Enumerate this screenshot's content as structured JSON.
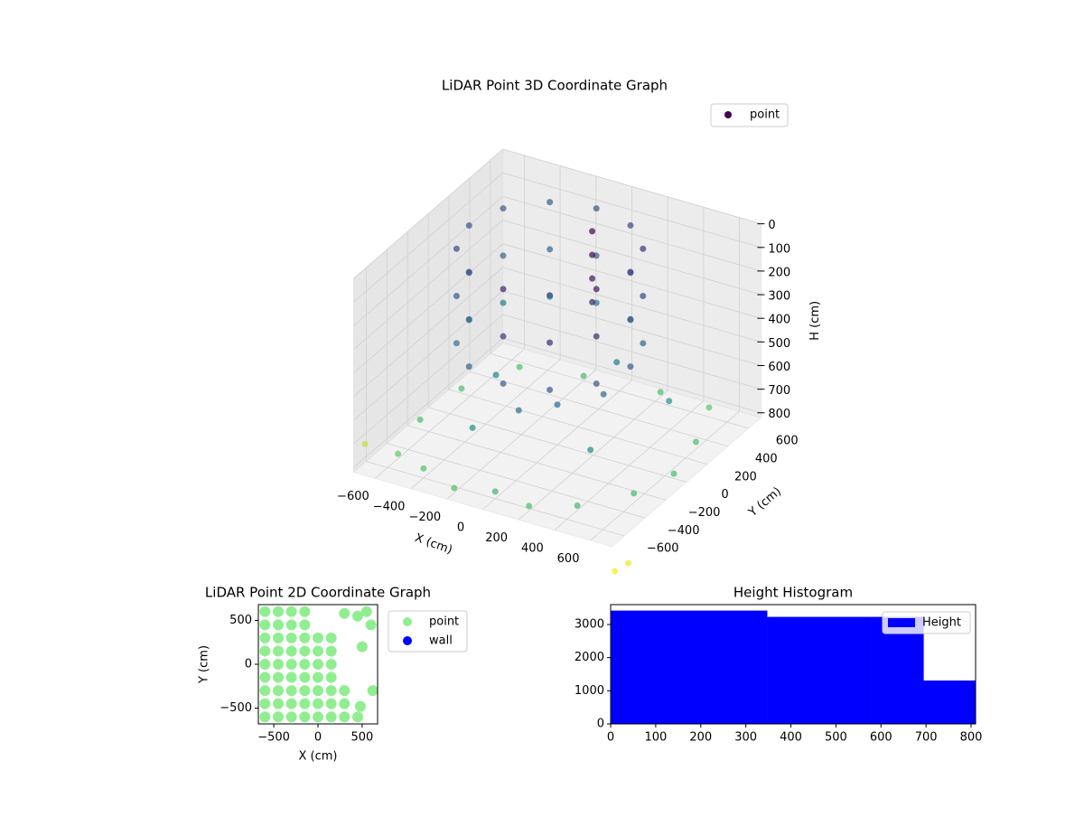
{
  "chart_data": [
    {
      "type": "scatter3d",
      "title": "LiDAR Point 3D Coordinate Graph",
      "xlabel": "X (cm)",
      "ylabel": "Y (cm)",
      "zlabel": "H (cm)",
      "xlim": [
        -720,
        720
      ],
      "ylim": [
        -720,
        720
      ],
      "zlim": [
        820,
        0
      ],
      "xticks": [
        {
          "value": -600,
          "label": "−600"
        },
        {
          "value": -400,
          "label": "−400"
        },
        {
          "value": -200,
          "label": "−200"
        },
        0,
        200,
        400,
        600
      ],
      "yticks": [
        {
          "value": -600,
          "label": "−600"
        },
        {
          "value": -400,
          "label": "−400"
        },
        {
          "value": -200,
          "label": "−200"
        },
        0,
        200,
        400,
        600
      ],
      "zticks": [
        0,
        100,
        200,
        300,
        400,
        500,
        600,
        700,
        800
      ],
      "colormap": "viridis",
      "color_by": "distance",
      "grid": true,
      "legend": "upper right",
      "series": [
        {
          "name": "point",
          "color": "#440154",
          "x": [
            350,
            290,
            125,
            -100,
            -325,
            -490,
            -550,
            -490,
            -325,
            -100,
            125,
            290,
            350,
            290,
            125,
            -100,
            -325,
            -490,
            -550,
            -490,
            -325,
            -100,
            125,
            290,
            350,
            290,
            125,
            -100,
            -325,
            -490,
            -550,
            -490,
            -325,
            -100,
            125,
            290,
            50,
            50,
            50,
            50,
            -600,
            -400,
            -200,
            0,
            200,
            400,
            600,
            650,
            600,
            500,
            200,
            -200,
            -500,
            -650,
            -650,
            -300,
            0,
            200,
            -100,
            300,
            -400,
            100,
            450,
            -900,
            760,
            800
          ],
          "y": [
            100,
            325,
            490,
            550,
            490,
            325,
            100,
            -125,
            -290,
            -350,
            -290,
            -125,
            100,
            325,
            490,
            550,
            490,
            325,
            100,
            -125,
            -290,
            -350,
            -290,
            -125,
            100,
            325,
            490,
            550,
            490,
            325,
            100,
            -125,
            -290,
            -350,
            -290,
            -125,
            250,
            250,
            250,
            250,
            -500,
            -600,
            -650,
            -600,
            -620,
            -500,
            -300,
            0,
            300,
            600,
            650,
            600,
            500,
            200,
            -200,
            -300,
            0,
            100,
            -200,
            -200,
            100,
            400,
            300,
            -300,
            -760,
            -700
          ],
          "z": [
            50,
            50,
            50,
            50,
            50,
            50,
            50,
            50,
            50,
            50,
            50,
            50,
            250,
            250,
            250,
            250,
            250,
            250,
            250,
            250,
            250,
            250,
            250,
            250,
            450,
            450,
            450,
            450,
            450,
            450,
            450,
            450,
            450,
            450,
            450,
            450,
            0,
            100,
            200,
            300,
            800,
            780,
            800,
            790,
            800,
            800,
            780,
            800,
            790,
            780,
            800,
            800,
            790,
            800,
            780,
            700,
            650,
            600,
            620,
            700,
            650,
            600,
            650,
            900,
            900,
            880
          ]
        }
      ]
    },
    {
      "type": "scatter",
      "title": "LiDAR Point 2D Coordinate Graph",
      "xlabel": "X (cm)",
      "ylabel": "Y (cm)",
      "xlim": [
        -675,
        675
      ],
      "ylim": [
        -680,
        680
      ],
      "xticks": [
        {
          "value": -500,
          "label": "−500"
        },
        0,
        500
      ],
      "yticks": [
        {
          "value": -500,
          "label": "−500"
        },
        0,
        500
      ],
      "legend": "outside right",
      "series": [
        {
          "name": "point",
          "color": "#90ee90",
          "x": [
            -600,
            -600,
            -600,
            -600,
            -600,
            -600,
            -600,
            -600,
            -600,
            -450,
            -450,
            -450,
            -450,
            -450,
            -450,
            -450,
            -450,
            -450,
            -300,
            -300,
            -300,
            -300,
            -300,
            -300,
            -300,
            -300,
            -300,
            -150,
            -150,
            -150,
            -150,
            -150,
            -150,
            -150,
            -150,
            -150,
            0,
            0,
            0,
            0,
            0,
            0,
            0,
            150,
            150,
            150,
            150,
            150,
            150,
            150,
            300,
            300,
            300,
            450,
            550,
            450,
            600,
            500,
            620,
            480,
            300
          ],
          "y": [
            -600,
            -450,
            -300,
            -150,
            0,
            150,
            300,
            450,
            600,
            -600,
            -450,
            -300,
            -150,
            0,
            150,
            300,
            450,
            600,
            -600,
            -450,
            -300,
            -150,
            0,
            150,
            300,
            450,
            600,
            -600,
            -450,
            -300,
            -150,
            0,
            150,
            300,
            450,
            600,
            -600,
            -450,
            -300,
            -150,
            0,
            150,
            300,
            -600,
            -450,
            -300,
            -150,
            0,
            150,
            300,
            -600,
            -450,
            -300,
            -600,
            600,
            550,
            450,
            200,
            -300,
            -480,
            580
          ]
        },
        {
          "name": "wall",
          "color": "#0000ff",
          "x": [],
          "y": []
        }
      ]
    },
    {
      "type": "histogram",
      "title": "Height Histogram",
      "xlim": [
        0,
        810
      ],
      "ylim": [
        0,
        3600
      ],
      "xticks": [
        0,
        100,
        200,
        300,
        400,
        500,
        600,
        700,
        800
      ],
      "yticks": [
        0,
        1000,
        2000,
        3000
      ],
      "legend": "upper right",
      "bins": [
        0,
        115.7,
        231.4,
        347.1,
        462.9,
        578.6,
        694.3,
        810
      ],
      "series": [
        {
          "name": "Height",
          "color": "#0000ff",
          "values": [
            3420,
            3420,
            3420,
            3230,
            3230,
            3230,
            1310
          ]
        }
      ]
    }
  ]
}
